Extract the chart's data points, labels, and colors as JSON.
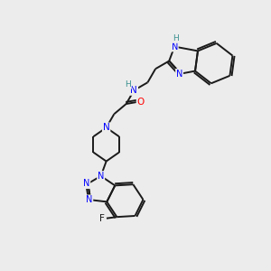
{
  "background_color": "#ececec",
  "fig_size": [
    3.0,
    3.0
  ],
  "dpi": 100,
  "bond_color": "#1a1a1a",
  "N_color": "#0000ff",
  "O_color": "#ff0000",
  "F_color": "#1a1a1a",
  "H_color": "#3a8f8f",
  "font_size": 8,
  "xlim": [
    0,
    10
  ],
  "ylim": [
    0,
    10
  ]
}
